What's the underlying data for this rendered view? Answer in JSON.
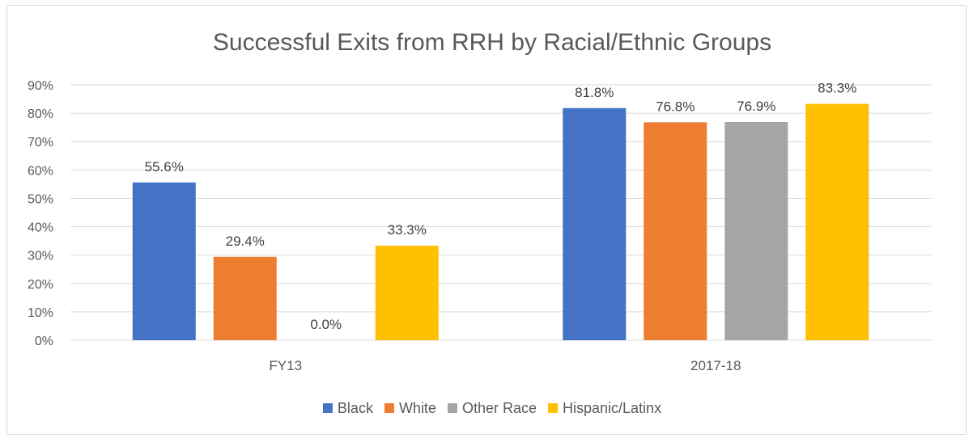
{
  "chart_data": {
    "type": "bar",
    "title": "Successful Exits from RRH by Racial/Ethnic Groups",
    "xlabel": "",
    "ylabel": "",
    "categories": [
      "FY13",
      "2017-18"
    ],
    "series": [
      {
        "name": "Black",
        "values": [
          55.6,
          81.8
        ],
        "labels": [
          "55.6%",
          "81.8%"
        ],
        "color": "#4472C4"
      },
      {
        "name": "White",
        "values": [
          29.4,
          76.8
        ],
        "labels": [
          "29.4%",
          "76.8%"
        ],
        "color": "#ED7D31"
      },
      {
        "name": "Other Race",
        "values": [
          0.0,
          76.9
        ],
        "labels": [
          "0.0%",
          "76.9%"
        ],
        "color": "#A5A5A5"
      },
      {
        "name": "Hispanic/Latinx",
        "values": [
          33.3,
          83.3
        ],
        "labels": [
          "33.3%",
          "83.3%"
        ],
        "color": "#FFC000"
      }
    ],
    "ylim": [
      0,
      90
    ],
    "yticks": [
      "0%",
      "10%",
      "20%",
      "30%",
      "40%",
      "50%",
      "60%",
      "70%",
      "80%",
      "90%"
    ],
    "grid": true,
    "legend": "bottom",
    "axis_color": "#d9d9d9"
  }
}
